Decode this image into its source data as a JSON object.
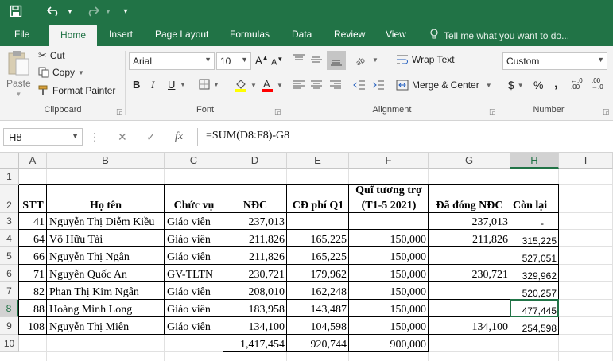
{
  "qat": {
    "save_icon": "save-icon",
    "undo_icon": "undo-icon",
    "redo_icon": "redo-icon",
    "customize_icon": "customize-icon"
  },
  "tabs": [
    "File",
    "Home",
    "Insert",
    "Page Layout",
    "Formulas",
    "Data",
    "Review",
    "View"
  ],
  "tellme": "Tell me what you want to do...",
  "clipboard": {
    "paste": "Paste",
    "cut": "Cut",
    "copy": "Copy",
    "format_painter": "Format Painter",
    "label": "Clipboard"
  },
  "font": {
    "name": "Arial",
    "size": "10",
    "label": "Font",
    "bold": "B",
    "italic": "I",
    "underline": "U",
    "color_fill": "#ffff00",
    "color_font": "#ff0000"
  },
  "alignment": {
    "wrap_text": "Wrap Text",
    "merge_center": "Merge & Center",
    "label": "Alignment"
  },
  "number": {
    "format": "Custom",
    "label": "Number",
    "currency": "$",
    "percent": "%",
    "comma": ","
  },
  "formula_bar": {
    "name_box": "H8",
    "cancel": "✕",
    "enter": "✓",
    "fx": "fx",
    "formula": "=SUM(D8:F8)-G8"
  },
  "columns": [
    "A",
    "B",
    "C",
    "D",
    "E",
    "F",
    "G",
    "H",
    "I"
  ],
  "rows": [
    "1",
    "2",
    "3",
    "4",
    "5",
    "6",
    "7",
    "8",
    "9",
    "10"
  ],
  "headers": {
    "a": "STT",
    "b": "Họ tên",
    "c": "Chức vụ",
    "d": "NĐC",
    "e": "CĐ phí Q1",
    "f1": "Quĩ tương trợ",
    "f2": "(T1-5 2021)",
    "g": "Đã đóng NĐC",
    "h": "Còn lại"
  },
  "data_rows": [
    {
      "a": "41",
      "b": "Nguyễn Thị Diễm Kiều",
      "c": "Giáo viên",
      "d": "237,013",
      "e": "",
      "f": "",
      "g": "237,013",
      "h": "-"
    },
    {
      "a": "64",
      "b": "Võ Hữu Tài",
      "c": "Giáo viên",
      "d": "211,826",
      "e": "165,225",
      "f": "150,000",
      "g": "211,826",
      "h": "315,225"
    },
    {
      "a": "66",
      "b": "Nguyễn Thị Ngân",
      "c": "Giáo viên",
      "d": "211,826",
      "e": "165,225",
      "f": "150,000",
      "g": "",
      "h": "527,051"
    },
    {
      "a": "71",
      "b": "Nguyễn Quốc An",
      "c": "GV-TLTN",
      "d": "230,721",
      "e": "179,962",
      "f": "150,000",
      "g": "230,721",
      "h": "329,962"
    },
    {
      "a": "82",
      "b": "Phan Thị Kim Ngân",
      "c": "Giáo viên",
      "d": "208,010",
      "e": "162,248",
      "f": "150,000",
      "g": "",
      "h": "520,257"
    },
    {
      "a": "88",
      "b": "Hoàng Minh Long",
      "c": "Giáo viên",
      "d": "183,958",
      "e": "143,487",
      "f": "150,000",
      "g": "",
      "h": "477,445"
    },
    {
      "a": "108",
      "b": "Nguyễn Thị Miên",
      "c": "Giáo viên",
      "d": "134,100",
      "e": "104,598",
      "f": "150,000",
      "g": "134,100",
      "h": "254,598"
    }
  ],
  "totals": {
    "d": "1,417,454",
    "e": "920,744",
    "f": "900,000"
  },
  "colors": {
    "brand": "#217346",
    "ribbon": "#f3f3f3"
  }
}
